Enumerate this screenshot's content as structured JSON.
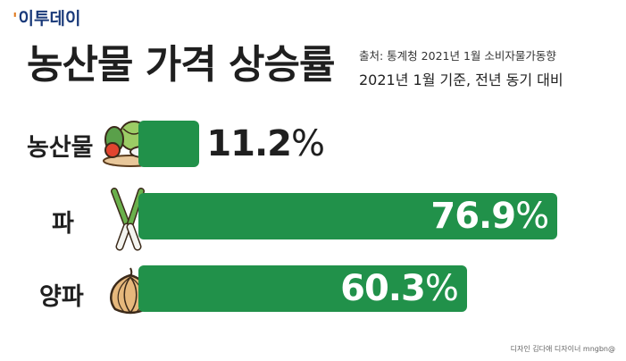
{
  "brand": {
    "logo_text": "이투데이"
  },
  "header": {
    "title": "농산물 가격 상승률",
    "source": "출처: 통계청 2021년 1월 소비자물가동향",
    "basis": "2021년 1월 기준, 전년 동기 대비"
  },
  "chart_data": {
    "type": "bar",
    "orientation": "horizontal",
    "title": "농산물 가격 상승률",
    "categories": [
      "농산물",
      "파",
      "양파"
    ],
    "values": [
      11.2,
      76.9,
      60.3
    ],
    "unit": "%",
    "value_labels": [
      "11.2",
      "76.9",
      "60.3"
    ],
    "xlim": [
      0,
      100
    ],
    "bar_color": "#21914a",
    "icons": [
      "vegetable-basket-icon",
      "green-onion-icon",
      "onion-icon"
    ]
  },
  "footer": {
    "credit": "디자인 김다애 디자이너 mngbn@"
  }
}
